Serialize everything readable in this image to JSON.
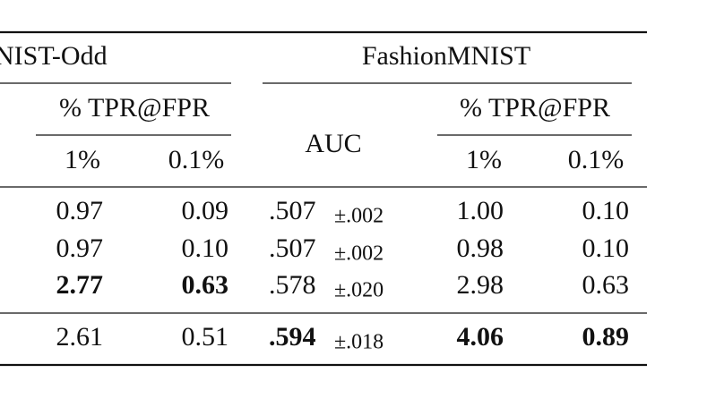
{
  "header": {
    "groups": [
      "NIST-Odd",
      "FashionMNIST"
    ],
    "subgroups": [
      "% TPR@FPR",
      "% TPR@FPR"
    ],
    "auc": "AUC",
    "columns": [
      "1%",
      "0.1%",
      "1%",
      "0.1%"
    ]
  },
  "table": {
    "rows": [
      {
        "cells": [
          "0.97",
          "0.09",
          ".507",
          "±.002",
          "1.00",
          "0.10"
        ],
        "bold": []
      },
      {
        "cells": [
          "0.97",
          "0.10",
          ".507",
          "±.002",
          "0.98",
          "0.10"
        ],
        "bold": []
      },
      {
        "cells": [
          "2.77",
          "0.63",
          ".578",
          "±.020",
          "2.98",
          "0.63"
        ],
        "bold": [
          0,
          1
        ]
      },
      {
        "cells": [
          "2.61",
          "0.51",
          ".594",
          "±.018",
          "4.06",
          "0.89"
        ],
        "bold": [
          2,
          4,
          5
        ]
      }
    ]
  }
}
